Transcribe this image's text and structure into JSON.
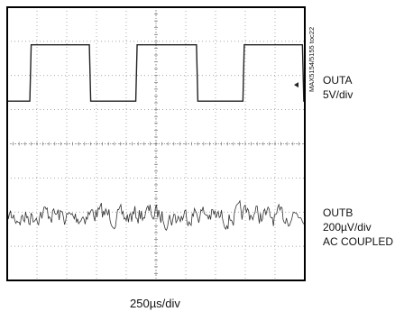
{
  "figure_code": "MAX5154/5155 toc22",
  "channels": [
    {
      "name": "OUTA",
      "scale": "5V/div",
      "coupling": ""
    },
    {
      "name": "OUTB",
      "scale": "200µV/div",
      "coupling": "AC COUPLED"
    }
  ],
  "timebase": "250µs/div",
  "chart_data": {
    "type": "line",
    "grid": true,
    "divisions": {
      "x": 10,
      "y": 8
    },
    "time_per_div_us": 250,
    "x_range_us": [
      0,
      2500
    ],
    "series": [
      {
        "name": "OUTA",
        "shape": "square",
        "baseline_div": 5.25,
        "high_div": 6.9,
        "edges_us": [
          190,
          690,
          1080,
          1590,
          1980,
          2480
        ]
      },
      {
        "name": "OUTB",
        "shape": "noise",
        "center_div": 1.9,
        "amplitude_div": 0.45
      }
    ]
  }
}
